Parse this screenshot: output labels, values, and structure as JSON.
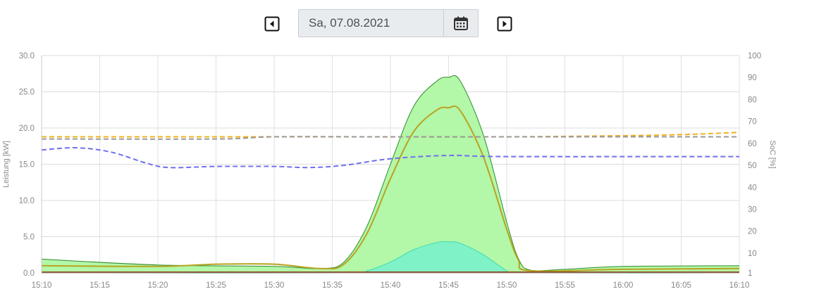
{
  "date_nav": {
    "date_value": "Sa, 07.08.2021",
    "icons": {
      "prev": "caret-left-square-icon",
      "next": "caret-right-square-icon",
      "calendar": "calendar-icon"
    }
  },
  "chart_data": {
    "type": "area",
    "x_unit": "time",
    "x_ticks": [
      "15:10",
      "15:15",
      "15:20",
      "15:25",
      "15:30",
      "15:35",
      "15:40",
      "15:45",
      "15:50",
      "15:55",
      "16:00",
      "16:05",
      "16:10"
    ],
    "ylabel": "Leistung [kW]",
    "y_ticks": [
      "0.0",
      "5.0",
      "10.0",
      "15.0",
      "20.0",
      "25.0",
      "30.0"
    ],
    "ylim": [
      0,
      30
    ],
    "y2label": "SoC [%]",
    "y2_ticks": [
      "1",
      "10",
      "20",
      "30",
      "40",
      "50",
      "60",
      "70",
      "80",
      "90",
      "100"
    ],
    "y2lim": [
      1,
      100
    ],
    "grid": true,
    "series": [
      {
        "axis": "left",
        "style": "area",
        "color": "#2e8b2e",
        "fill": "#b3f7a8",
        "points": [
          [
            "15:10",
            1.9
          ],
          [
            "15:20",
            1.1
          ],
          [
            "15:30",
            0.9
          ],
          [
            "15:34",
            0.6
          ],
          [
            "15:36",
            1.5
          ],
          [
            "15:38",
            6.5
          ],
          [
            "15:40",
            15.0
          ],
          [
            "15:42",
            23.0
          ],
          [
            "15:44",
            26.5
          ],
          [
            "15:45",
            27.0
          ],
          [
            "15:46",
            26.5
          ],
          [
            "15:48",
            19.0
          ],
          [
            "15:50",
            7.0
          ],
          [
            "15:51",
            2.0
          ],
          [
            "15:52",
            0.4
          ],
          [
            "15:55",
            0.5
          ],
          [
            "16:00",
            0.9
          ],
          [
            "16:10",
            1.0
          ]
        ]
      },
      {
        "axis": "left",
        "style": "line",
        "color": "#b8a321",
        "points": [
          [
            "15:10",
            1.0
          ],
          [
            "15:20",
            0.9
          ],
          [
            "15:25",
            1.2
          ],
          [
            "15:30",
            1.2
          ],
          [
            "15:34",
            0.6
          ],
          [
            "15:36",
            1.2
          ],
          [
            "15:38",
            5.5
          ],
          [
            "15:40",
            13.0
          ],
          [
            "15:42",
            19.5
          ],
          [
            "15:44",
            22.5
          ],
          [
            "15:45",
            22.8
          ],
          [
            "15:46",
            22.4
          ],
          [
            "15:48",
            16.0
          ],
          [
            "15:50",
            6.0
          ],
          [
            "15:51",
            1.8
          ],
          [
            "15:52",
            0.3
          ],
          [
            "16:00",
            0.5
          ],
          [
            "16:10",
            0.6
          ]
        ]
      },
      {
        "axis": "left",
        "style": "area",
        "color": "#3ddcb0",
        "fill": "#7ff2c8",
        "points": [
          [
            "15:10",
            0.0
          ],
          [
            "15:36",
            0.0
          ],
          [
            "15:38",
            0.3
          ],
          [
            "15:40",
            1.5
          ],
          [
            "15:42",
            3.2
          ],
          [
            "15:44",
            4.2
          ],
          [
            "15:45",
            4.3
          ],
          [
            "15:46",
            4.1
          ],
          [
            "15:48",
            2.5
          ],
          [
            "15:50",
            0.3
          ],
          [
            "15:51",
            0.0
          ],
          [
            "16:10",
            0.0
          ]
        ]
      },
      {
        "axis": "left",
        "style": "line",
        "color": "#8b4513",
        "points": [
          [
            "15:10",
            0.1
          ],
          [
            "16:10",
            0.1
          ]
        ]
      },
      {
        "axis": "right",
        "style": "dashed",
        "color": "#f0b020",
        "points": [
          [
            "15:10",
            63
          ],
          [
            "15:30",
            63
          ],
          [
            "15:50",
            63
          ],
          [
            "16:00",
            63.5
          ],
          [
            "16:05",
            64
          ],
          [
            "16:10",
            65
          ]
        ]
      },
      {
        "axis": "right",
        "style": "dashed",
        "color": "#999999",
        "points": [
          [
            "15:10",
            62
          ],
          [
            "15:25",
            62
          ],
          [
            "15:30",
            63
          ],
          [
            "15:40",
            63
          ],
          [
            "16:10",
            63
          ]
        ]
      },
      {
        "axis": "right",
        "style": "dashed",
        "color": "#7070ee",
        "points": [
          [
            "15:10",
            57
          ],
          [
            "15:13",
            58
          ],
          [
            "15:16",
            56
          ],
          [
            "15:19",
            51
          ],
          [
            "15:21",
            49
          ],
          [
            "15:25",
            49.5
          ],
          [
            "15:30",
            49.5
          ],
          [
            "15:33",
            49
          ],
          [
            "15:36",
            50
          ],
          [
            "15:40",
            53
          ],
          [
            "15:45",
            54.5
          ],
          [
            "15:50",
            54
          ],
          [
            "16:10",
            54
          ]
        ]
      }
    ]
  }
}
